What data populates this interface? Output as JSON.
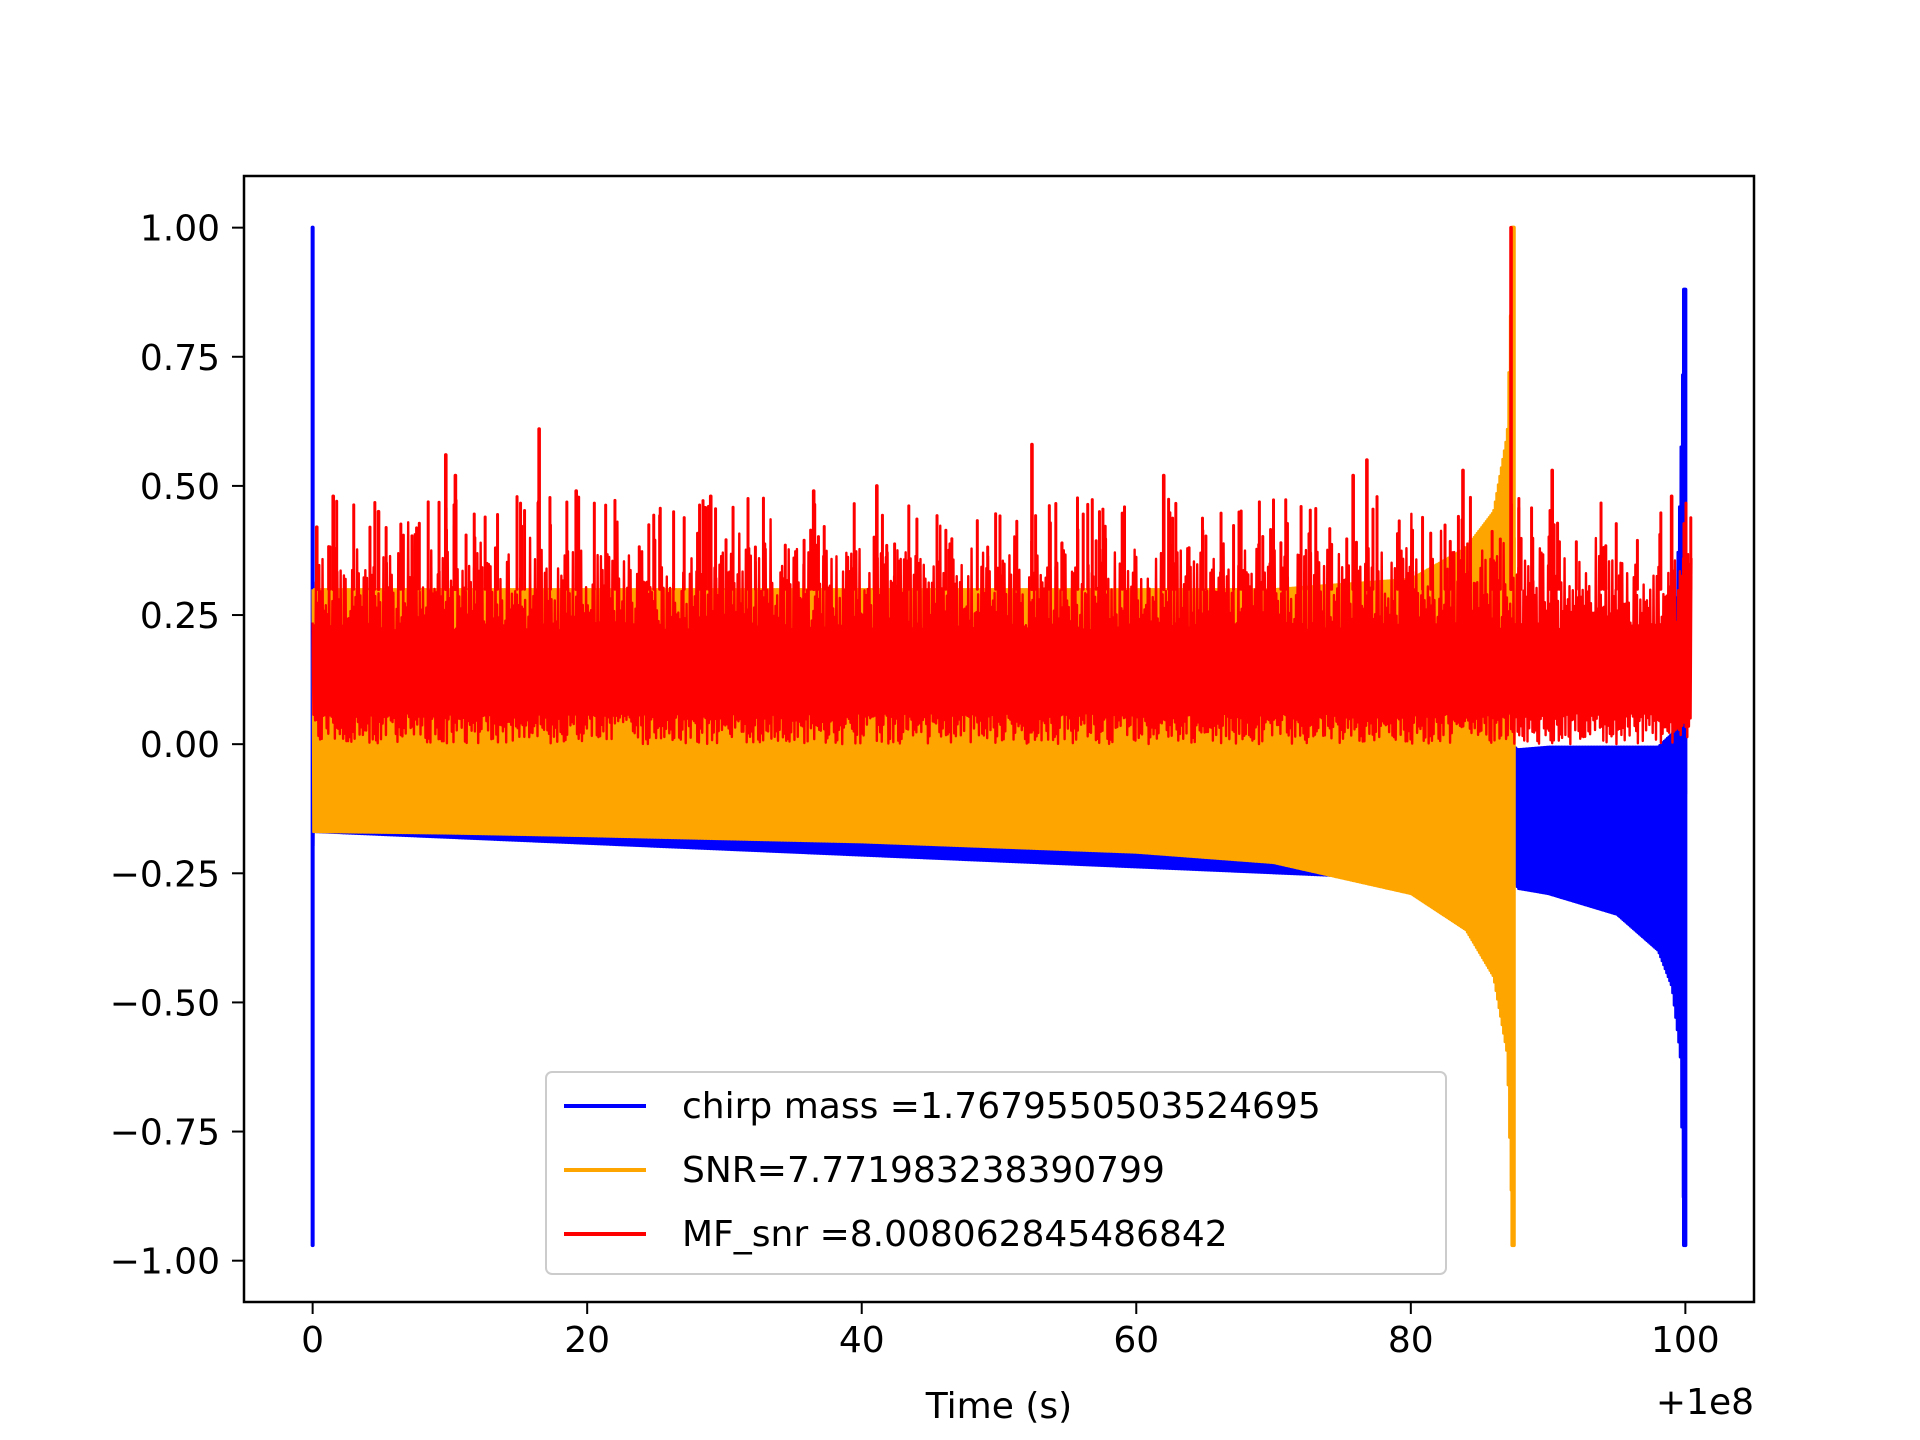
{
  "chart_data": {
    "type": "line",
    "title": "",
    "xlabel": "Time (s)",
    "ylabel": "",
    "x_offset_label": "+1e8",
    "xlim": [
      -5,
      105
    ],
    "ylim": [
      -1.08,
      1.1
    ],
    "grid": false,
    "legend_position": "lower center",
    "xticks": [
      {
        "value": 0,
        "label": "0"
      },
      {
        "value": 20,
        "label": "20"
      },
      {
        "value": 40,
        "label": "40"
      },
      {
        "value": 60,
        "label": "60"
      },
      {
        "value": 80,
        "label": "80"
      },
      {
        "value": 100,
        "label": "100"
      }
    ],
    "yticks": [
      {
        "value": 1.0,
        "label": "1.00"
      },
      {
        "value": 0.75,
        "label": "0.75"
      },
      {
        "value": 0.5,
        "label": "0.50"
      },
      {
        "value": 0.25,
        "label": "0.25"
      },
      {
        "value": 0.0,
        "label": "0.00"
      },
      {
        "value": -0.25,
        "label": "−0.25"
      },
      {
        "value": -0.5,
        "label": "−0.50"
      },
      {
        "value": -0.75,
        "label": "−0.75"
      },
      {
        "value": -1.0,
        "label": "−1.00"
      }
    ],
    "series": [
      {
        "name": "chirp mass =1.7679550503524695",
        "color": "#0000ff",
        "x": [
          0.0,
          0.05,
          0.1,
          87.6,
          87.8,
          90,
          95,
          98,
          99,
          99.6,
          99.9,
          100.0,
          100.05
        ],
        "upper": [
          1.0,
          0.35,
          0.0,
          -0.005,
          -0.01,
          -0.005,
          -0.005,
          -0.005,
          0.02,
          0.5,
          0.88,
          0.88,
          0.0
        ],
        "lower": [
          -0.97,
          -0.2,
          -0.17,
          -0.27,
          -0.28,
          -0.29,
          -0.33,
          -0.4,
          -0.47,
          -0.6,
          -0.97,
          -0.97,
          0.0
        ]
      },
      {
        "name": "SNR=7.771983238390799",
        "color": "#ffa500",
        "x": [
          0.0,
          10,
          20,
          40,
          60,
          70,
          80,
          84,
          86,
          87,
          87.4,
          87.5,
          87.6
        ],
        "upper": [
          0.3,
          0.3,
          0.3,
          0.3,
          0.3,
          0.3,
          0.32,
          0.38,
          0.45,
          0.6,
          1.0,
          1.0,
          0.0
        ],
        "lower": [
          -0.17,
          -0.173,
          -0.178,
          -0.19,
          -0.21,
          -0.23,
          -0.29,
          -0.36,
          -0.45,
          -0.6,
          -0.97,
          -0.97,
          0.0
        ]
      },
      {
        "name": "MF_snr =8.008062845486842",
        "color": "#ff0000",
        "x_start": 0.0,
        "x_end": 100.5,
        "band_low": 0.0,
        "band_high": 0.38,
        "peaks": [
          {
            "x": 0.3,
            "y": 0.42
          },
          {
            "x": 1.5,
            "y": 0.48
          },
          {
            "x": 4.8,
            "y": 0.45
          },
          {
            "x": 9.7,
            "y": 0.56
          },
          {
            "x": 10.4,
            "y": 0.52
          },
          {
            "x": 16.5,
            "y": 0.61
          },
          {
            "x": 19.2,
            "y": 0.49
          },
          {
            "x": 29.0,
            "y": 0.48
          },
          {
            "x": 36.5,
            "y": 0.49
          },
          {
            "x": 41.1,
            "y": 0.5
          },
          {
            "x": 52.4,
            "y": 0.58
          },
          {
            "x": 62.0,
            "y": 0.52
          },
          {
            "x": 75.8,
            "y": 0.52
          },
          {
            "x": 76.8,
            "y": 0.55
          },
          {
            "x": 83.8,
            "y": 0.53
          },
          {
            "x": 87.3,
            "y": 1.0
          },
          {
            "x": 90.3,
            "y": 0.53
          },
          {
            "x": 99.0,
            "y": 0.48
          }
        ]
      }
    ]
  }
}
